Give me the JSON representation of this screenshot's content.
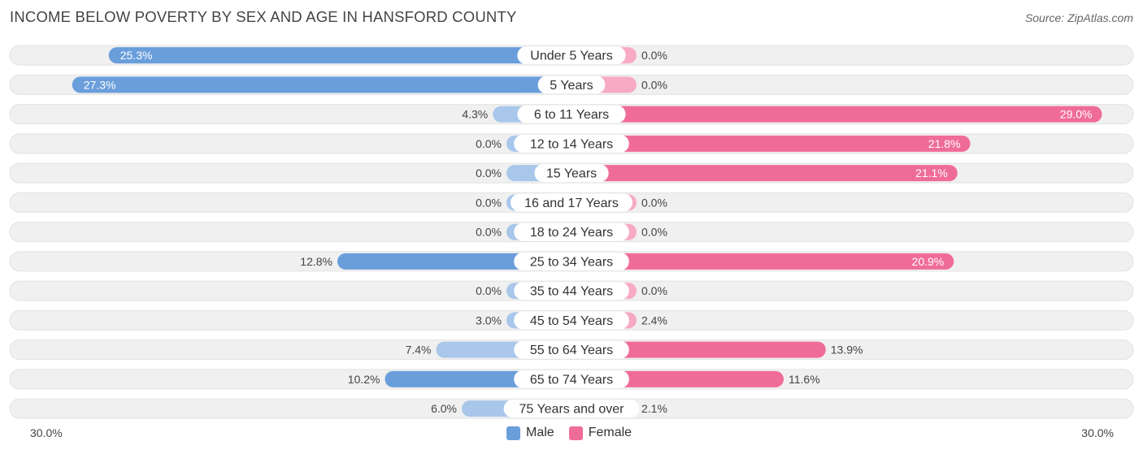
{
  "header": {
    "title": "INCOME BELOW POVERTY BY SEX AND AGE IN HANSFORD COUNTY",
    "source": "Source: ZipAtlas.com"
  },
  "axis": {
    "left_label": "30.0%",
    "right_label": "30.0%"
  },
  "legend": {
    "male_label": "Male",
    "female_label": "Female"
  },
  "colors": {
    "male_strong": "#6a9edb",
    "male_light": "#a9c7ea",
    "female_strong": "#f06c98",
    "female_light": "#f7aac4",
    "track": "#f0f0f0"
  },
  "chart_data": {
    "type": "bar",
    "orientation": "diverging-horizontal",
    "title": "INCOME BELOW POVERTY BY SEX AND AGE IN HANSFORD COUNTY",
    "xlim": [
      -30,
      30
    ],
    "categories": [
      "Under 5 Years",
      "5 Years",
      "6 to 11 Years",
      "12 to 14 Years",
      "15 Years",
      "16 and 17 Years",
      "18 to 24 Years",
      "25 to 34 Years",
      "35 to 44 Years",
      "45 to 54 Years",
      "55 to 64 Years",
      "65 to 74 Years",
      "75 Years and over"
    ],
    "series": [
      {
        "name": "Male",
        "values": [
          25.3,
          27.3,
          4.3,
          0.0,
          0.0,
          0.0,
          0.0,
          12.8,
          0.0,
          3.0,
          7.4,
          10.2,
          6.0
        ],
        "labels": [
          "25.3%",
          "27.3%",
          "4.3%",
          "0.0%",
          "0.0%",
          "0.0%",
          "0.0%",
          "12.8%",
          "0.0%",
          "3.0%",
          "7.4%",
          "10.2%",
          "6.0%"
        ]
      },
      {
        "name": "Female",
        "values": [
          0.0,
          0.0,
          29.0,
          21.8,
          21.1,
          0.0,
          0.0,
          20.9,
          0.0,
          2.4,
          13.9,
          11.6,
          2.1
        ],
        "labels": [
          "0.0%",
          "0.0%",
          "29.0%",
          "21.8%",
          "21.1%",
          "0.0%",
          "0.0%",
          "20.9%",
          "0.0%",
          "2.4%",
          "13.9%",
          "11.6%",
          "2.1%"
        ]
      }
    ]
  }
}
